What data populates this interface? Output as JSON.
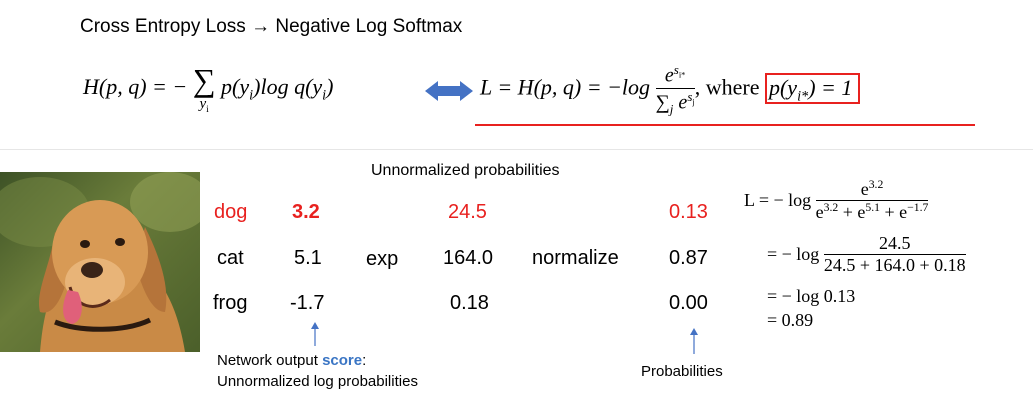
{
  "title": "Cross Entropy Loss → Negative Log Softmax",
  "formula_left": {
    "lhs": "H(p, q) = −",
    "sum": "∑",
    "sum_sub": "y",
    "sum_sub_i": "i",
    "body": "p(y",
    "body_i": "i",
    "body_mid": ")log q(y",
    "body_i2": "i",
    "body_end": ")"
  },
  "formula_right": {
    "lhs": "L = H(p, q) = −log",
    "num_base": "e",
    "num_exp": "s",
    "num_exp_sub": "i*",
    "den_sum": "∑",
    "den_sub": "j",
    "den_base": "e",
    "den_exp": "s",
    "den_exp_sub": "j",
    "comma": ",",
    "where": "where",
    "boxed": "p(y",
    "boxed_sub": "i*",
    "boxed_end": ") = 1"
  },
  "header_unnormalized": "Unnormalized probabilities",
  "rows": [
    {
      "label": "dog",
      "score": "3.2",
      "exp": "24.5",
      "prob": "0.13"
    },
    {
      "label": "cat",
      "score": "5.1",
      "exp": "164.0",
      "prob": "0.87"
    },
    {
      "label": "frog",
      "score": "-1.7",
      "exp": "0.18",
      "prob": "0.00"
    }
  ],
  "op_exp": "exp",
  "op_normalize": "normalize",
  "caption_score_prefix": "Network output ",
  "caption_score_word": "score",
  "caption_score_suffix": ":",
  "caption_score_line2": "Unnormalized log probabilities",
  "caption_probabilities": "Probabilities",
  "calc": {
    "l1_lhs": "L = − log",
    "l1_num": "e",
    "l1_num_exp": "3.2",
    "l1_den_a": "e",
    "l1_den_a_exp": "3.2",
    "l1_den_b": " + e",
    "l1_den_b_exp": "5.1",
    "l1_den_c": " + e",
    "l1_den_c_exp": "−1.7",
    "l2_lhs": "= − log",
    "l2_num": "24.5",
    "l2_den": "24.5 + 164.0 + 0.18",
    "l3": "= − log 0.13",
    "l4": "= 0.89"
  },
  "colors": {
    "red": "#e8211f",
    "blue": "#3a75c4",
    "arrow": "#4472c4"
  }
}
